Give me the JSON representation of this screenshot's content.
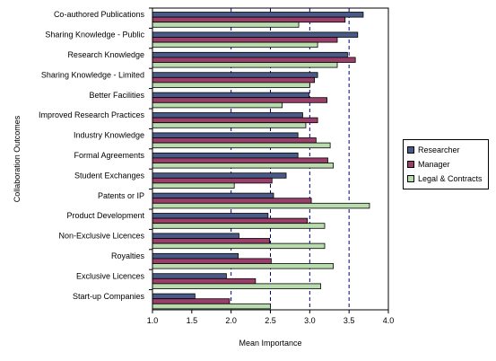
{
  "chart_data": {
    "type": "bar",
    "orientation": "horizontal",
    "title": "",
    "xlabel": "Mean Importance",
    "ylabel": "Collaboration Outcomes",
    "xlim": [
      1.0,
      4.0
    ],
    "xticks": [
      "1.0",
      "1.5",
      "2.0",
      "2.5",
      "3.0",
      "3.5",
      "4.0"
    ],
    "grid": "dashed vertical lines at 2.0, 2.5, 3.0, 3.5",
    "legend_position": "right",
    "categories": [
      "Co-authored Publications",
      "Sharing Knowledge - Public",
      "Research Knowledge",
      "Sharing Knowledge - Limited",
      "Better Facilities",
      "Improved Research Practices",
      "Industry Knowledge",
      "Formal Agreements",
      "Student Exchanges",
      "Patents or IP",
      "Product Development",
      "Non-Exclusive Licences",
      "Royalties",
      "Exclusive Licences",
      "Start-up Companies"
    ],
    "series": [
      {
        "name": "Researcher",
        "color": "#4a5a86",
        "values": [
          3.68,
          3.61,
          3.48,
          3.1,
          2.99,
          2.91,
          2.85,
          2.85,
          2.7,
          2.54,
          2.47,
          2.1,
          2.09,
          1.94,
          1.54
        ]
      },
      {
        "name": "Manager",
        "color": "#9a3e6a",
        "values": [
          3.45,
          3.35,
          3.58,
          3.06,
          3.22,
          3.1,
          3.08,
          3.23,
          2.52,
          3.02,
          2.97,
          2.49,
          2.51,
          2.31,
          1.98
        ]
      },
      {
        "name": "Legal & Contracts",
        "color": "#b8dcae",
        "values": [
          2.86,
          3.1,
          3.35,
          3.0,
          2.65,
          2.95,
          3.26,
          3.3,
          2.04,
          3.76,
          3.19,
          3.19,
          3.3,
          3.14,
          2.5
        ]
      }
    ]
  }
}
